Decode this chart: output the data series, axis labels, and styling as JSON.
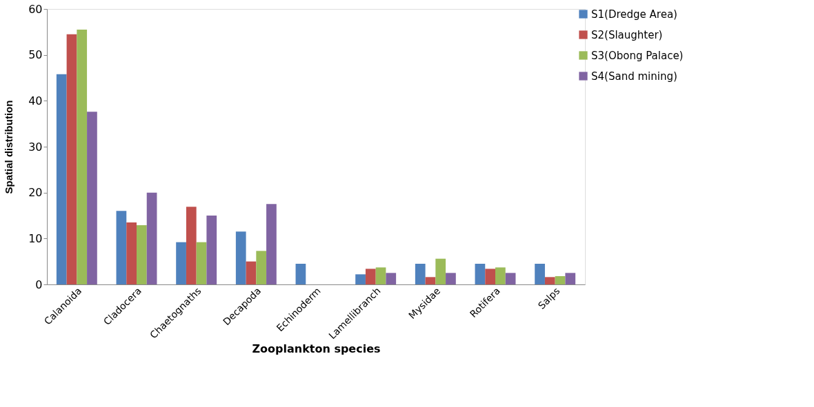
{
  "chart_data": {
    "type": "bar",
    "xlabel": "Zooplankton species",
    "ylabel": "Spatial distribution",
    "categories": [
      "Calanoida",
      "Cladocera",
      "Chaetognaths",
      "Decapoda",
      "Echinoderm",
      "Lamellibranch",
      "Mysidae",
      "Rotifera",
      "Salps"
    ],
    "series": [
      {
        "name": "S1(Dredge Area)",
        "color": "#4f81bd",
        "values": [
          45.8,
          16,
          9.2,
          11.5,
          4.5,
          2.2,
          4.5,
          4.5,
          4.5
        ]
      },
      {
        "name": "S2(Slaughter)",
        "color": "#c0504d",
        "values": [
          54.5,
          13.5,
          16.9,
          5,
          null,
          3.4,
          1.6,
          3.4,
          1.6
        ]
      },
      {
        "name": "S3(Obong Palace)",
        "color": "#9bbb59",
        "values": [
          55.5,
          12.9,
          9.2,
          7.3,
          null,
          3.7,
          5.6,
          3.7,
          1.8
        ]
      },
      {
        "name": "S4(Sand mining)",
        "color": "#8064a2",
        "values": [
          37.6,
          20,
          15,
          17.5,
          null,
          2.5,
          2.5,
          2.5,
          2.5
        ]
      }
    ],
    "ylim": [
      0,
      60
    ],
    "yticks": [
      0,
      10,
      20,
      30,
      40,
      50,
      60
    ],
    "grid": false,
    "legend": "right"
  }
}
